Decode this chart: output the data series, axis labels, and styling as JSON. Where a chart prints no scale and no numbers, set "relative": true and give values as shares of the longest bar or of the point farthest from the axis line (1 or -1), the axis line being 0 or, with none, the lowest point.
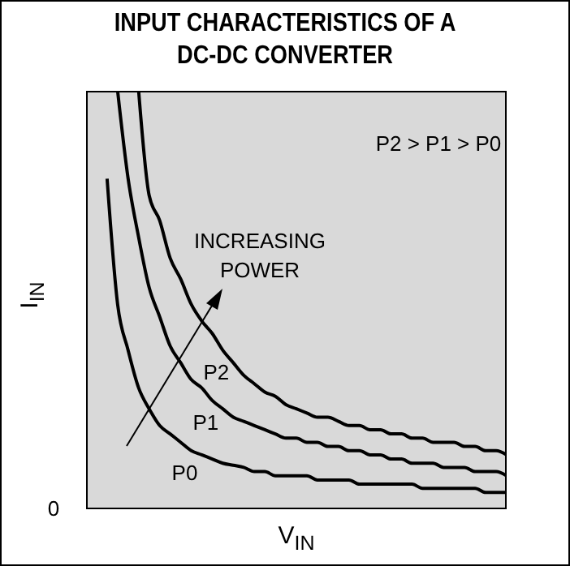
{
  "chart_data": {
    "type": "line",
    "title": "INPUT CHARACTERISTICS OF A\nDC-DC CONVERTER",
    "xlabel": "V$_{IN}$",
    "ylabel": "I$_{IN}$",
    "relative": true,
    "marker": "none",
    "line_style": "solid",
    "annotations": [
      "P2 > P1 > P0",
      "INCREASING\nPOWER",
      "0"
    ],
    "categories": [
      null,
      null,
      null,
      null,
      null,
      null,
      null,
      null,
      null,
      null,
      null,
      null,
      null,
      null,
      null,
      null,
      null,
      null,
      null,
      null,
      null,
      null,
      null,
      null,
      null,
      null,
      null,
      null,
      null,
      null,
      null,
      null,
      null,
      null,
      null,
      null,
      null,
      null,
      null,
      null,
      null
    ],
    "series": [
      {
        "name": "P0",
        "color": "#000000",
        "values": [
          null,
          null,
          0.79,
          0.49,
          0.38,
          0.29,
          0.24,
          0.2,
          0.18,
          0.16,
          0.14,
          0.13,
          0.12,
          0.11,
          0.105,
          0.1,
          0.09,
          0.09,
          0.08,
          0.08,
          0.08,
          0.08,
          0.07,
          0.07,
          0.07,
          0.07,
          0.06,
          0.06,
          0.06,
          0.06,
          0.06,
          0.06,
          0.05,
          0.05,
          0.05,
          0.05,
          0.05,
          0.05,
          0.04,
          0.04,
          0.04
        ]
      },
      {
        "name": "P1",
        "color": "#000000",
        "values": [
          null,
          null,
          null,
          1,
          0.79,
          0.65,
          0.53,
          0.46,
          0.39,
          0.35,
          0.31,
          0.29,
          0.26,
          0.24,
          0.22,
          0.21,
          0.2,
          0.19,
          0.18,
          0.17,
          0.17,
          0.16,
          0.16,
          0.15,
          0.15,
          0.14,
          0.14,
          0.13,
          0.13,
          0.12,
          0.12,
          0.11,
          0.11,
          0.11,
          0.1,
          0.1,
          0.1,
          0.09,
          0.09,
          0.09,
          0.08
        ]
      },
      {
        "name": "P2",
        "color": "#000000",
        "values": [
          null,
          null,
          null,
          null,
          null,
          1,
          0.75,
          0.69,
          0.6,
          0.55,
          0.49,
          0.45,
          0.42,
          0.38,
          0.35,
          0.32,
          0.3,
          0.28,
          0.27,
          0.25,
          0.24,
          0.23,
          0.22,
          0.22,
          0.21,
          0.2,
          0.2,
          0.19,
          0.19,
          0.18,
          0.18,
          0.17,
          0.17,
          0.16,
          0.16,
          0.16,
          0.15,
          0.15,
          0.14,
          0.14,
          0.13
        ]
      }
    ]
  }
}
